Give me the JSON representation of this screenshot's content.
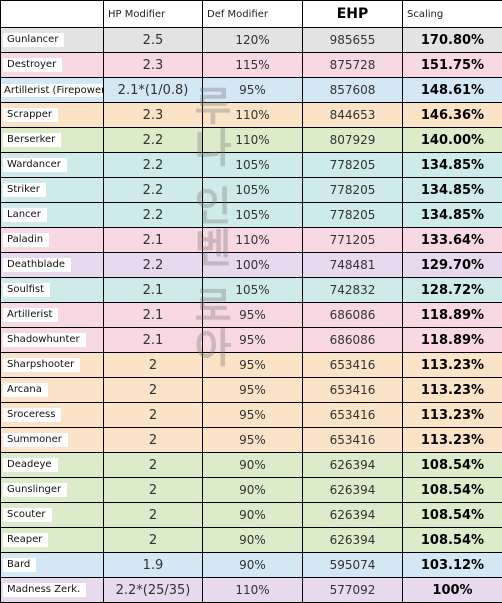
{
  "headers": {
    "class": "",
    "hp": "HP Modifier",
    "def": "Def Modifier",
    "ehp": "EHP",
    "scaling": "Scaling"
  },
  "rows": [
    {
      "name": "Gunlancer",
      "hp": "2.5",
      "def": "120%",
      "ehp": "985655",
      "scaling": "170.80%",
      "color": "#e3e3e3"
    },
    {
      "name": "Destroyer",
      "hp": "2.3",
      "def": "115%",
      "ehp": "875728",
      "scaling": "151.75%",
      "color": "#f8d8e2"
    },
    {
      "name": "Artillerist (Firepower)",
      "hp": "2.1*(1/0.8)",
      "def": "95%",
      "ehp": "857608",
      "scaling": "148.61%",
      "color": "#d4e7f4"
    },
    {
      "name": "Scrapper",
      "hp": "2.3",
      "def": "110%",
      "ehp": "844653",
      "scaling": "146.36%",
      "color": "#fae3c6"
    },
    {
      "name": "Berserker",
      "hp": "2.2",
      "def": "110%",
      "ehp": "807929",
      "scaling": "140.00%",
      "color": "#dcebc9"
    },
    {
      "name": "Wardancer",
      "hp": "2.2",
      "def": "105%",
      "ehp": "778205",
      "scaling": "134.85%",
      "color": "#cfeaea"
    },
    {
      "name": "Striker",
      "hp": "2.2",
      "def": "105%",
      "ehp": "778205",
      "scaling": "134.85%",
      "color": "#cfeaea"
    },
    {
      "name": "Lancer",
      "hp": "2.2",
      "def": "105%",
      "ehp": "778205",
      "scaling": "134.85%",
      "color": "#cfeaea"
    },
    {
      "name": "Paladin",
      "hp": "2.1",
      "def": "110%",
      "ehp": "771205",
      "scaling": "133.64%",
      "color": "#f8d8e2"
    },
    {
      "name": "Deathblade",
      "hp": "2.2",
      "def": "100%",
      "ehp": "748481",
      "scaling": "129.70%",
      "color": "#e8d9ee"
    },
    {
      "name": "Soulfist",
      "hp": "2.1",
      "def": "105%",
      "ehp": "742832",
      "scaling": "128.72%",
      "color": "#cfeaea"
    },
    {
      "name": "Artillerist",
      "hp": "2.1",
      "def": "95%",
      "ehp": "686086",
      "scaling": "118.89%",
      "color": "#f8d8e2"
    },
    {
      "name": "Shadowhunter",
      "hp": "2.1",
      "def": "95%",
      "ehp": "686086",
      "scaling": "118.89%",
      "color": "#f8d8e2"
    },
    {
      "name": "Sharpshooter",
      "hp": "2",
      "def": "95%",
      "ehp": "653416",
      "scaling": "113.23%",
      "color": "#fae3c6"
    },
    {
      "name": "Arcana",
      "hp": "2",
      "def": "95%",
      "ehp": "653416",
      "scaling": "113.23%",
      "color": "#fae3c6"
    },
    {
      "name": "Sroceress",
      "hp": "2",
      "def": "95%",
      "ehp": "653416",
      "scaling": "113.23%",
      "color": "#fae3c6"
    },
    {
      "name": "Summoner",
      "hp": "2",
      "def": "95%",
      "ehp": "653416",
      "scaling": "113.23%",
      "color": "#fae3c6"
    },
    {
      "name": "Deadeye",
      "hp": "2",
      "def": "90%",
      "ehp": "626394",
      "scaling": "108.54%",
      "color": "#dcebc9"
    },
    {
      "name": "Gunslinger",
      "hp": "2",
      "def": "90%",
      "ehp": "626394",
      "scaling": "108.54%",
      "color": "#dcebc9"
    },
    {
      "name": "Scouter",
      "hp": "2",
      "def": "90%",
      "ehp": "626394",
      "scaling": "108.54%",
      "color": "#dcebc9"
    },
    {
      "name": "Reaper",
      "hp": "2",
      "def": "90%",
      "ehp": "626394",
      "scaling": "108.54%",
      "color": "#dcebc9"
    },
    {
      "name": "Bard",
      "hp": "1.9",
      "def": "90%",
      "ehp": "595074",
      "scaling": "103.12%",
      "color": "#d4e7f4"
    },
    {
      "name": "Madness Zerk.",
      "hp": "2.2*(25/35)",
      "def": "110%",
      "ehp": "577092",
      "scaling": "100%",
      "color": "#e8d9ee"
    }
  ],
  "watermark": "루나 인벤 로아"
}
